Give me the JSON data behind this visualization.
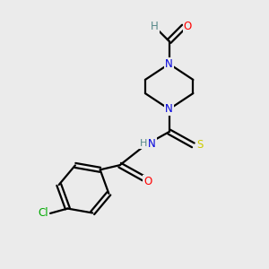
{
  "bg_color": "#ebebeb",
  "bond_color": "#000000",
  "bond_width": 1.6,
  "atom_colors": {
    "N": "#0000dd",
    "O": "#ff0000",
    "S": "#cccc00",
    "Cl": "#00aa00",
    "C": "#000000",
    "H": "#558888"
  },
  "font_size": 8.5
}
